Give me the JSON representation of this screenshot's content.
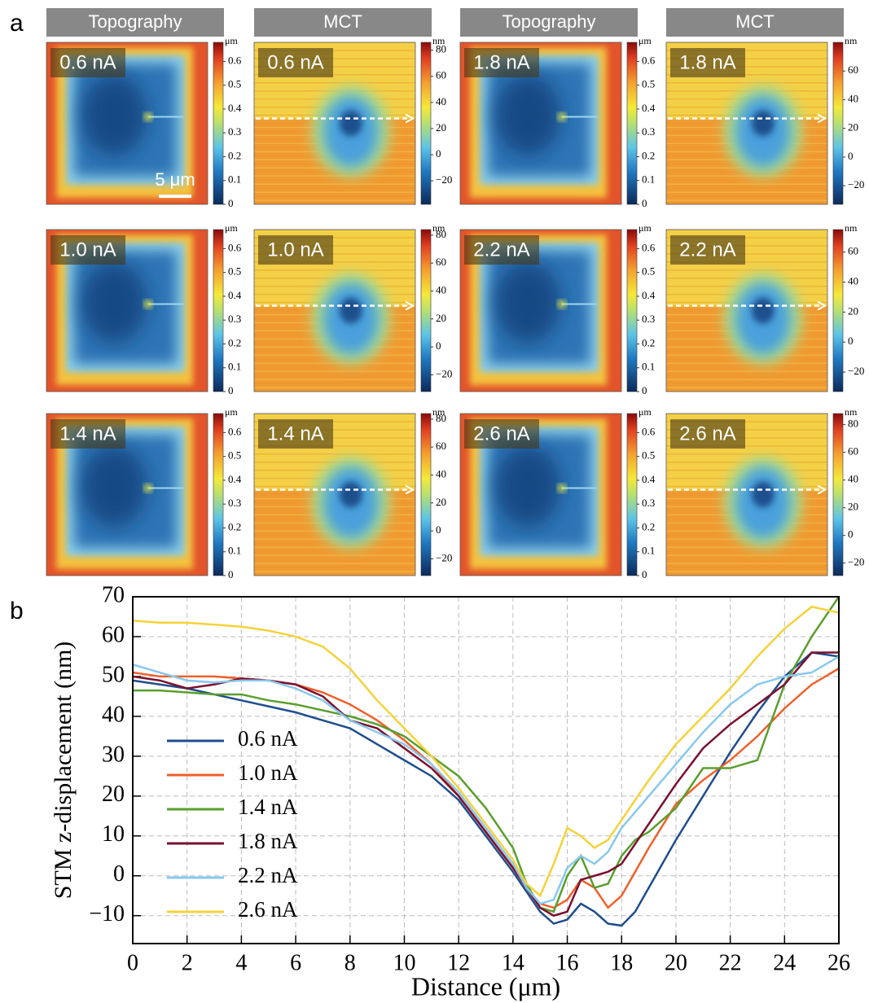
{
  "panel_a": {
    "letter": "a",
    "headers": [
      "Topography",
      "MCT",
      "Topography",
      "MCT"
    ],
    "scale_bar": "5 μm",
    "panels": [
      {
        "type": "topography",
        "current": "0.6 nA",
        "unit": "μm",
        "clim": [
          0,
          0.68
        ],
        "ticks": [
          0,
          0.1,
          0.2,
          0.3,
          0.4,
          0.5,
          0.6
        ]
      },
      {
        "type": "mct",
        "current": "0.6 nA",
        "unit": "nm",
        "clim": [
          -38,
          86
        ],
        "ticks": [
          {
            "value": -20,
            "label": "−20"
          },
          0,
          20,
          40,
          60,
          80
        ]
      },
      {
        "type": "topography",
        "current": "1.8 nA",
        "unit": "μm",
        "clim": [
          0,
          0.68
        ],
        "ticks": [
          0,
          0.1,
          0.2,
          0.3,
          0.4,
          0.5,
          0.6
        ]
      },
      {
        "type": "mct",
        "current": "1.8 nA",
        "unit": "nm",
        "clim": [
          -33,
          80
        ],
        "ticks": [
          {
            "value": -20,
            "label": "−20"
          },
          0,
          20,
          40,
          60
        ]
      },
      {
        "type": "topography",
        "current": "1.0 nA",
        "unit": "μm",
        "clim": [
          0,
          0.68
        ],
        "ticks": [
          0,
          0.1,
          0.2,
          0.3,
          0.4,
          0.5,
          0.6
        ]
      },
      {
        "type": "mct",
        "current": "1.0 nA",
        "unit": "nm",
        "clim": [
          -32,
          84
        ],
        "ticks": [
          {
            "value": -20,
            "label": "−20"
          },
          0,
          20,
          40,
          60,
          80
        ]
      },
      {
        "type": "topography",
        "current": "2.2 nA",
        "unit": "μm",
        "clim": [
          0,
          0.68
        ],
        "ticks": [
          0,
          0.1,
          0.2,
          0.3,
          0.4,
          0.5,
          0.6
        ]
      },
      {
        "type": "mct",
        "current": "2.2 nA",
        "unit": "nm",
        "clim": [
          -33,
          75
        ],
        "ticks": [
          {
            "value": -20,
            "label": "−20"
          },
          0,
          20,
          40,
          60
        ]
      },
      {
        "type": "topography",
        "current": "1.4 nA",
        "unit": "μm",
        "clim": [
          0,
          0.68
        ],
        "ticks": [
          0,
          0.1,
          0.2,
          0.3,
          0.4,
          0.5,
          0.6
        ]
      },
      {
        "type": "mct",
        "current": "1.4 nA",
        "unit": "nm",
        "clim": [
          -32,
          84
        ],
        "ticks": [
          {
            "value": -20,
            "label": "−20"
          },
          0,
          20,
          40,
          60,
          80
        ]
      },
      {
        "type": "topography",
        "current": "2.6 nA",
        "unit": "μm",
        "clim": [
          0,
          0.68
        ],
        "ticks": [
          0,
          0.1,
          0.2,
          0.3,
          0.4,
          0.5,
          0.6
        ]
      },
      {
        "type": "mct",
        "current": "2.6 nA",
        "unit": "nm",
        "clim": [
          -29,
          88
        ],
        "ticks": [
          {
            "value": -20,
            "label": "−20"
          },
          0,
          20,
          40,
          60,
          80
        ]
      }
    ]
  },
  "chart_data": {
    "type": "line",
    "letter": "b",
    "xlabel": "Distance (μm)",
    "ylabel": "STM z-displacement (nm)",
    "xlim": [
      0,
      26
    ],
    "ylim": [
      -17,
      70
    ],
    "xticks": [
      0,
      2,
      4,
      6,
      8,
      10,
      12,
      14,
      16,
      18,
      20,
      22,
      24,
      26
    ],
    "yticks": [
      {
        "value": -10,
        "label": "−10"
      },
      0,
      10,
      20,
      30,
      40,
      50,
      60,
      70
    ],
    "grid": true,
    "legend": "center left",
    "x": [
      0,
      1,
      2,
      3,
      4,
      5,
      6,
      7,
      8,
      9,
      10,
      11,
      12,
      13,
      14,
      14.5,
      15,
      15.5,
      16,
      16.5,
      17,
      17.5,
      18,
      18.5,
      19,
      20,
      21,
      22,
      23,
      24,
      25,
      26
    ],
    "series": [
      {
        "name": "0.6 nA",
        "color": "#1f4e8c",
        "values": [
          49,
          48,
          47,
          45.5,
          44,
          42.5,
          41,
          39,
          37,
          33,
          29,
          25,
          19,
          10,
          1,
          -4,
          -9,
          -12,
          -11,
          -7,
          -9,
          -12,
          -12.5,
          -9,
          -3,
          9,
          20,
          31,
          41,
          50,
          56,
          55
        ]
      },
      {
        "name": "1.0 nA",
        "color": "#f0602a",
        "values": [
          51,
          50,
          50,
          50,
          49.5,
          49,
          48,
          46,
          43,
          39,
          34,
          28,
          20,
          11,
          2,
          -3,
          -7,
          -8,
          -6,
          -1,
          -3,
          -8,
          -5,
          1,
          7,
          18,
          24,
          29,
          35,
          42,
          48,
          52
        ]
      },
      {
        "name": "1.4 nA",
        "color": "#5a9e2e",
        "values": [
          46.5,
          46.5,
          46,
          45.5,
          45.5,
          44,
          43,
          41.5,
          40,
          38,
          35,
          30,
          25,
          17,
          7,
          -2,
          -8,
          -9,
          0,
          5,
          -3,
          -2,
          5,
          9,
          11,
          17,
          27,
          27,
          29,
          48,
          60,
          70
        ]
      },
      {
        "name": "1.8 nA",
        "color": "#7a1030",
        "values": [
          50,
          49,
          47,
          48,
          49.5,
          49,
          48,
          45,
          39,
          37,
          32,
          27,
          20,
          11,
          2,
          -3,
          -8,
          -10,
          -9,
          -1,
          0,
          1,
          3,
          8,
          13,
          23,
          32,
          38,
          43,
          48,
          56,
          56
        ]
      },
      {
        "name": "2.2 nA",
        "color": "#88c8ee",
        "values": [
          53,
          51,
          49,
          48.5,
          49,
          49,
          47,
          44,
          39,
          36,
          33,
          28,
          21,
          12,
          3,
          -3,
          -7,
          -6,
          2,
          5,
          3,
          6,
          12,
          16,
          20,
          28,
          36,
          43,
          48,
          50,
          51,
          55
        ]
      },
      {
        "name": "2.6 nA",
        "color": "#f5d23a",
        "values": [
          64,
          63.5,
          63.5,
          63,
          62.5,
          61.5,
          60,
          57.5,
          52,
          44,
          37,
          30,
          22,
          13,
          4,
          -2,
          -5,
          3,
          12,
          10,
          7,
          9,
          14,
          19,
          24,
          33,
          40,
          47,
          55,
          62,
          67.5,
          66
        ]
      }
    ]
  }
}
